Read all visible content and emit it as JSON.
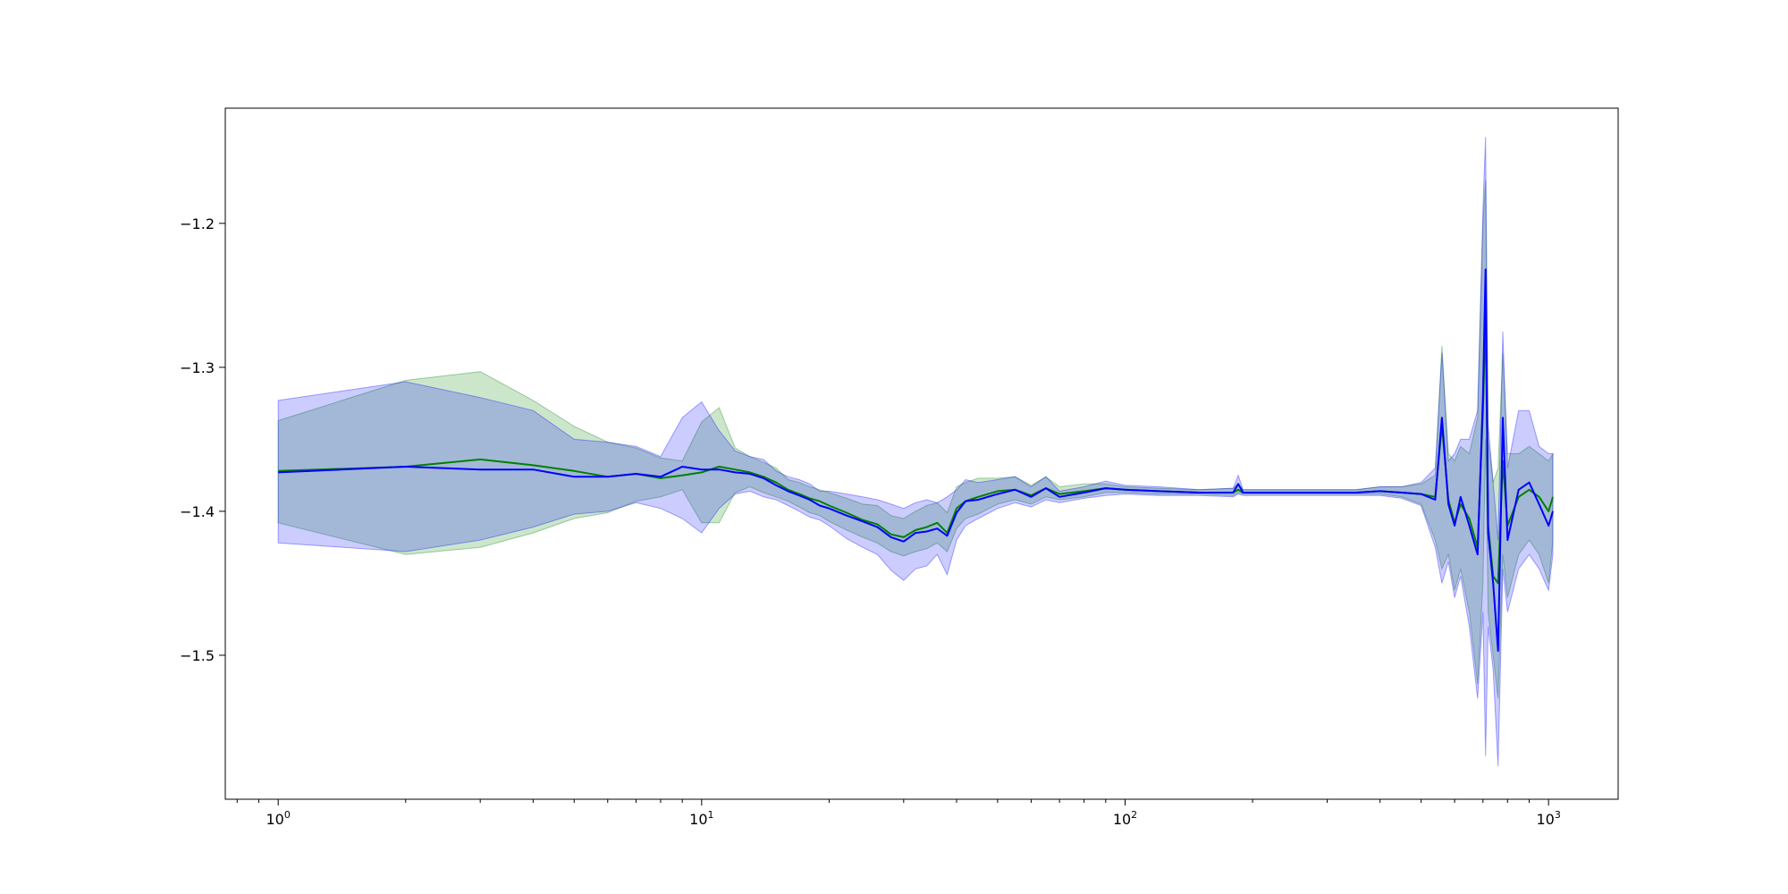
{
  "chart_data": {
    "type": "line",
    "title": "",
    "xlabel": "",
    "ylabel": "",
    "xscale": "log",
    "xlim": [
      0.75,
      1460
    ],
    "ylim": [
      -1.6,
      -1.12
    ],
    "grid": false,
    "legend": "none",
    "x_ticks": [
      {
        "base": "10",
        "exp": "0",
        "value": 1
      },
      {
        "base": "10",
        "exp": "1",
        "value": 10
      },
      {
        "base": "10",
        "exp": "2",
        "value": 100
      },
      {
        "base": "10",
        "exp": "3",
        "value": 1000
      }
    ],
    "y_ticks": [
      {
        "label": "−1.2",
        "value": -1.2
      },
      {
        "label": "−1.3",
        "value": -1.3
      },
      {
        "label": "−1.4",
        "value": -1.4
      },
      {
        "label": "−1.5",
        "value": -1.5
      }
    ],
    "series": [
      {
        "color": "#008000",
        "band_color": "#008000",
        "band_opacity": 0.2,
        "x": [
          1,
          2,
          3,
          4,
          5,
          6,
          7,
          8,
          9,
          10,
          11,
          12,
          13,
          14,
          15,
          16,
          17,
          18,
          19,
          20,
          22,
          24,
          26,
          28,
          30,
          32,
          34,
          36,
          38,
          40,
          42,
          45,
          50,
          55,
          60,
          65,
          70,
          80,
          90,
          100,
          120,
          150,
          180,
          185,
          190,
          250,
          300,
          350,
          400,
          450,
          500,
          540,
          560,
          580,
          600,
          620,
          650,
          680,
          700,
          710,
          720,
          740,
          760,
          780,
          800,
          850,
          900,
          950,
          1000,
          1024
        ],
        "y": [
          -1.372,
          -1.369,
          -1.364,
          -1.368,
          -1.372,
          -1.376,
          -1.374,
          -1.377,
          -1.375,
          -1.373,
          -1.369,
          -1.371,
          -1.373,
          -1.376,
          -1.38,
          -1.385,
          -1.388,
          -1.391,
          -1.393,
          -1.396,
          -1.401,
          -1.406,
          -1.409,
          -1.416,
          -1.418,
          -1.413,
          -1.411,
          -1.408,
          -1.415,
          -1.398,
          -1.393,
          -1.39,
          -1.386,
          -1.385,
          -1.389,
          -1.384,
          -1.388,
          -1.386,
          -1.384,
          -1.385,
          -1.386,
          -1.387,
          -1.387,
          -1.385,
          -1.387,
          -1.387,
          -1.387,
          -1.387,
          -1.386,
          -1.387,
          -1.388,
          -1.39,
          -1.34,
          -1.392,
          -1.408,
          -1.395,
          -1.405,
          -1.425,
          -1.33,
          -1.263,
          -1.41,
          -1.445,
          -1.45,
          -1.365,
          -1.41,
          -1.39,
          -1.385,
          -1.39,
          -1.4,
          -1.39
        ],
        "lower": [
          -1.408,
          -1.43,
          -1.425,
          -1.415,
          -1.405,
          -1.401,
          -1.393,
          -1.39,
          -1.385,
          -1.408,
          -1.408,
          -1.387,
          -1.383,
          -1.387,
          -1.39,
          -1.393,
          -1.397,
          -1.401,
          -1.403,
          -1.407,
          -1.413,
          -1.418,
          -1.422,
          -1.428,
          -1.431,
          -1.428,
          -1.426,
          -1.422,
          -1.428,
          -1.412,
          -1.405,
          -1.402,
          -1.395,
          -1.392,
          -1.395,
          -1.39,
          -1.392,
          -1.39,
          -1.387,
          -1.387,
          -1.388,
          -1.388,
          -1.389,
          -1.387,
          -1.388,
          -1.388,
          -1.388,
          -1.388,
          -1.388,
          -1.39,
          -1.395,
          -1.42,
          -1.44,
          -1.43,
          -1.455,
          -1.44,
          -1.47,
          -1.52,
          -1.45,
          -1.35,
          -1.47,
          -1.5,
          -1.53,
          -1.43,
          -1.46,
          -1.43,
          -1.42,
          -1.43,
          -1.45,
          -1.42
        ],
        "upper": [
          -1.337,
          -1.309,
          -1.303,
          -1.323,
          -1.341,
          -1.352,
          -1.356,
          -1.363,
          -1.365,
          -1.338,
          -1.328,
          -1.356,
          -1.362,
          -1.366,
          -1.37,
          -1.378,
          -1.38,
          -1.383,
          -1.385,
          -1.387,
          -1.391,
          -1.395,
          -1.396,
          -1.403,
          -1.405,
          -1.4,
          -1.396,
          -1.394,
          -1.401,
          -1.383,
          -1.38,
          -1.377,
          -1.377,
          -1.376,
          -1.382,
          -1.376,
          -1.383,
          -1.381,
          -1.381,
          -1.383,
          -1.384,
          -1.385,
          -1.384,
          -1.381,
          -1.385,
          -1.385,
          -1.385,
          -1.385,
          -1.383,
          -1.383,
          -1.381,
          -1.375,
          -1.285,
          -1.36,
          -1.365,
          -1.355,
          -1.36,
          -1.335,
          -1.2,
          -1.17,
          -1.35,
          -1.38,
          -1.37,
          -1.29,
          -1.36,
          -1.36,
          -1.355,
          -1.36,
          -1.365,
          -1.36
        ]
      },
      {
        "color": "#0000ff",
        "band_color": "#0000ff",
        "band_opacity": 0.2,
        "x": [
          1,
          2,
          3,
          4,
          5,
          6,
          7,
          8,
          9,
          10,
          11,
          12,
          13,
          14,
          15,
          16,
          17,
          18,
          19,
          20,
          22,
          24,
          26,
          28,
          30,
          32,
          34,
          36,
          38,
          40,
          42,
          45,
          50,
          55,
          60,
          65,
          70,
          80,
          90,
          100,
          120,
          150,
          180,
          185,
          190,
          250,
          300,
          350,
          400,
          450,
          500,
          540,
          560,
          580,
          600,
          620,
          650,
          680,
          700,
          710,
          720,
          740,
          760,
          780,
          800,
          850,
          900,
          950,
          1000,
          1024
        ],
        "y": [
          -1.373,
          -1.369,
          -1.371,
          -1.371,
          -1.376,
          -1.376,
          -1.374,
          -1.376,
          -1.369,
          -1.371,
          -1.371,
          -1.373,
          -1.374,
          -1.377,
          -1.382,
          -1.386,
          -1.389,
          -1.392,
          -1.396,
          -1.398,
          -1.403,
          -1.407,
          -1.411,
          -1.418,
          -1.421,
          -1.415,
          -1.414,
          -1.412,
          -1.417,
          -1.401,
          -1.393,
          -1.392,
          -1.388,
          -1.385,
          -1.39,
          -1.384,
          -1.39,
          -1.387,
          -1.384,
          -1.385,
          -1.386,
          -1.387,
          -1.387,
          -1.381,
          -1.387,
          -1.387,
          -1.387,
          -1.387,
          -1.386,
          -1.387,
          -1.388,
          -1.392,
          -1.335,
          -1.395,
          -1.41,
          -1.39,
          -1.41,
          -1.43,
          -1.32,
          -1.232,
          -1.415,
          -1.45,
          -1.497,
          -1.335,
          -1.42,
          -1.385,
          -1.38,
          -1.395,
          -1.41,
          -1.4
        ],
        "lower": [
          -1.422,
          -1.428,
          -1.42,
          -1.411,
          -1.402,
          -1.4,
          -1.394,
          -1.398,
          -1.405,
          -1.415,
          -1.398,
          -1.388,
          -1.386,
          -1.39,
          -1.392,
          -1.396,
          -1.4,
          -1.404,
          -1.406,
          -1.41,
          -1.419,
          -1.425,
          -1.43,
          -1.441,
          -1.448,
          -1.44,
          -1.438,
          -1.43,
          -1.444,
          -1.42,
          -1.41,
          -1.405,
          -1.398,
          -1.394,
          -1.397,
          -1.392,
          -1.394,
          -1.391,
          -1.389,
          -1.388,
          -1.389,
          -1.389,
          -1.39,
          -1.388,
          -1.389,
          -1.389,
          -1.389,
          -1.389,
          -1.389,
          -1.391,
          -1.396,
          -1.425,
          -1.45,
          -1.435,
          -1.46,
          -1.445,
          -1.48,
          -1.53,
          -1.47,
          -1.57,
          -1.48,
          -1.51,
          -1.577,
          -1.44,
          -1.47,
          -1.44,
          -1.43,
          -1.44,
          -1.455,
          -1.43
        ],
        "upper": [
          -1.323,
          -1.31,
          -1.321,
          -1.33,
          -1.35,
          -1.352,
          -1.355,
          -1.362,
          -1.335,
          -1.324,
          -1.344,
          -1.358,
          -1.362,
          -1.364,
          -1.372,
          -1.376,
          -1.378,
          -1.381,
          -1.386,
          -1.386,
          -1.388,
          -1.39,
          -1.392,
          -1.395,
          -1.398,
          -1.394,
          -1.392,
          -1.394,
          -1.39,
          -1.385,
          -1.378,
          -1.38,
          -1.378,
          -1.376,
          -1.383,
          -1.376,
          -1.386,
          -1.383,
          -1.379,
          -1.382,
          -1.383,
          -1.385,
          -1.384,
          -1.375,
          -1.385,
          -1.385,
          -1.385,
          -1.385,
          -1.383,
          -1.383,
          -1.38,
          -1.37,
          -1.29,
          -1.365,
          -1.36,
          -1.35,
          -1.35,
          -1.33,
          -1.19,
          -1.14,
          -1.34,
          -1.38,
          -1.42,
          -1.275,
          -1.37,
          -1.33,
          -1.33,
          -1.355,
          -1.36,
          -1.36
        ]
      }
    ]
  }
}
